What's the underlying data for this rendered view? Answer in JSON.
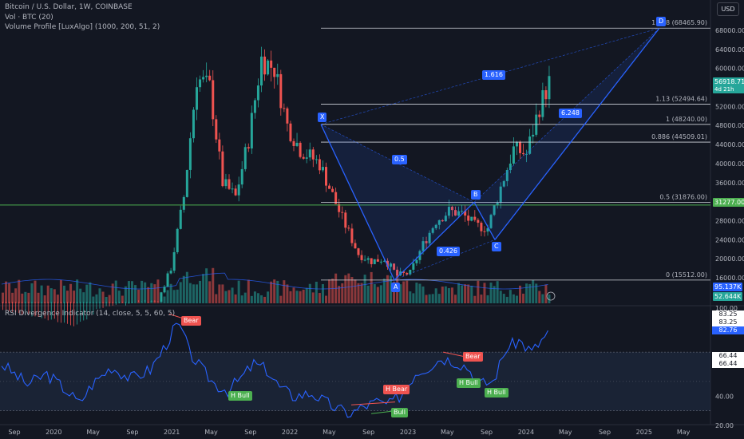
{
  "header": {
    "symbol_line": "Bitcoin / U.S. Dollar, 1W, COINBASE",
    "vol_line": "Vol · BTC (20)",
    "vp_line": "Volume Profile [LuxAlgo] (1000, 200, 51, 2)",
    "currency_button": "USD"
  },
  "price_axis": {
    "labels": [
      "68000.00",
      "64000.00",
      "60000.00",
      "56000.00",
      "52000.00",
      "48000.00",
      "44000.00",
      "40000.00",
      "36000.00",
      "32000.00",
      "28000.00",
      "24000.00",
      "20000.00",
      "16000.00"
    ],
    "current_price": "56918.71",
    "countdown": "4d 21h",
    "support_tag": "31277.00",
    "volume_tag_1": "95.137K",
    "volume_tag_2": "52.644K"
  },
  "fib_levels": [
    {
      "label": "1.618 (68465.90)"
    },
    {
      "label": "1.13 (52494.64)"
    },
    {
      "label": "1 (48240.00)"
    },
    {
      "label": "0.886 (44509.01)"
    },
    {
      "label": "0.5 (31876.00)"
    },
    {
      "label": "0 (15512.00)"
    }
  ],
  "pattern": {
    "points": [
      "X",
      "A",
      "B",
      "C",
      "D"
    ],
    "ratios": [
      "1.616",
      "0.5",
      "0.426",
      "6.248"
    ]
  },
  "rsi": {
    "title": "RSI Divergence Indicator (14, close, 5, 5, 60, 5)",
    "axis_labels": [
      "100.00",
      "40.00",
      "20.00"
    ],
    "value_tags": [
      "83.25",
      "83.25",
      "82.76",
      "66.44",
      "66.44"
    ],
    "signals": [
      "Bear",
      "Bear",
      "H Bull",
      "H Bull",
      "H Bear",
      "Bull",
      "H Bull",
      "H Bull"
    ]
  },
  "time_axis": [
    "Sep",
    "2020",
    "May",
    "Sep",
    "2021",
    "May",
    "Sep",
    "2022",
    "May",
    "Sep",
    "2023",
    "May",
    "Sep",
    "2024",
    "May",
    "Sep",
    "2025",
    "May"
  ],
  "colors": {
    "background": "#131722",
    "up": "#26a69a",
    "down": "#ef5350",
    "pattern": "#2962ff",
    "support": "#4caf50",
    "rsi_line": "#2962ff",
    "rsi_band": "#1e2a3d"
  }
}
